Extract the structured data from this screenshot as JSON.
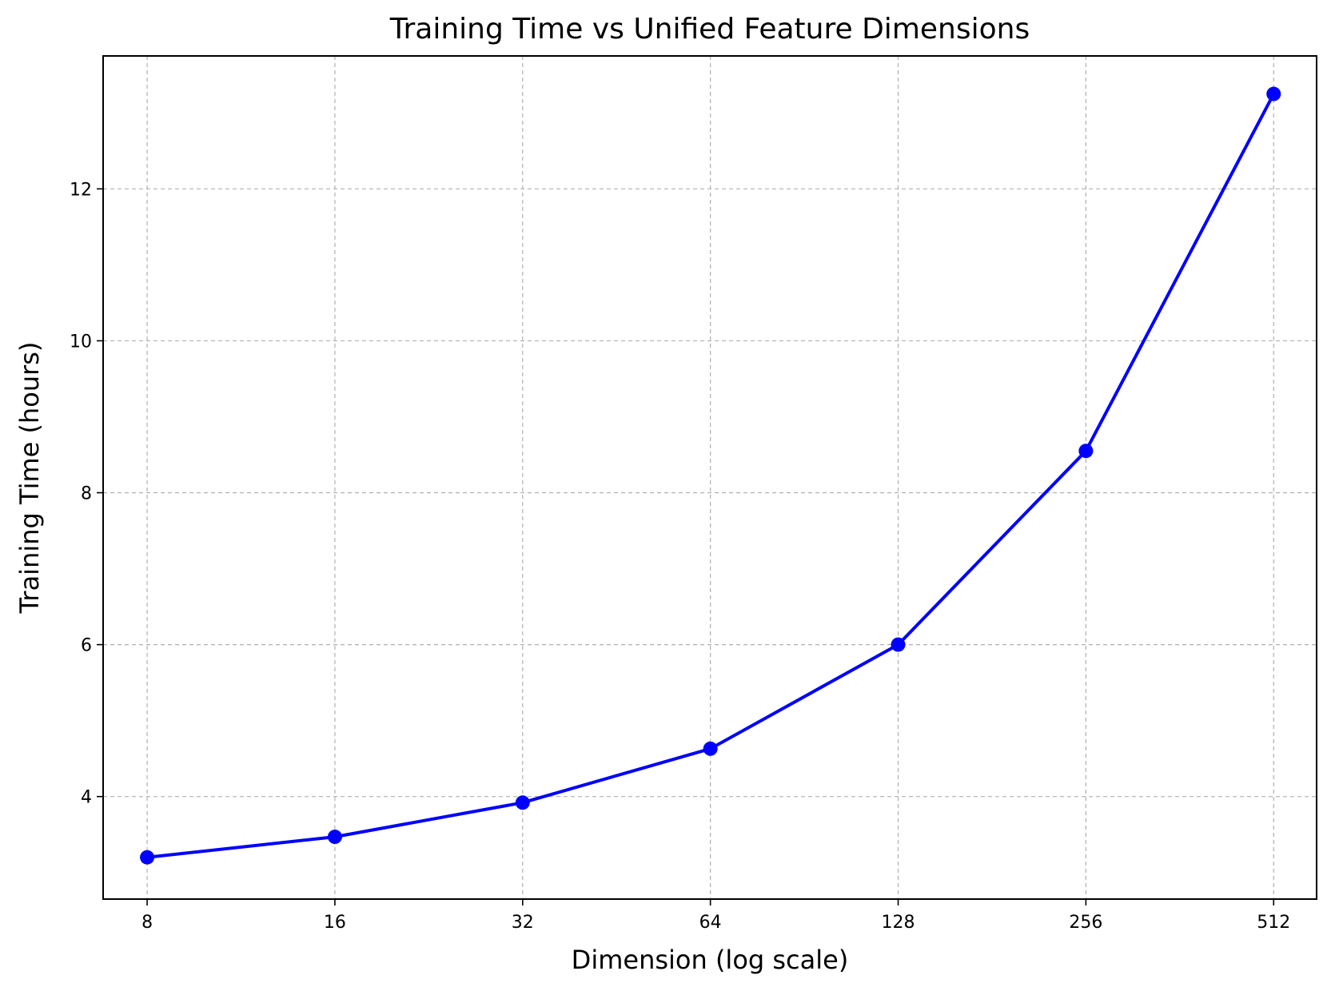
{
  "chart_data": {
    "type": "line",
    "title": "Training Time vs Unified Feature Dimensions",
    "xlabel": "Dimension (log scale)",
    "ylabel": "Training Time (hours)",
    "x_scale": "log2",
    "xlim": [
      6.8,
      600
    ],
    "ylim": [
      2.65,
      13.75
    ],
    "x_ticks": [
      8,
      16,
      32,
      64,
      128,
      256,
      512
    ],
    "x_tick_labels": [
      "8",
      "16",
      "32",
      "64",
      "128",
      "256",
      "512"
    ],
    "y_ticks": [
      4,
      6,
      8,
      10,
      12
    ],
    "y_tick_labels": [
      "4",
      "6",
      "8",
      "10",
      "12"
    ],
    "grid": true,
    "series": [
      {
        "color": "#0000ff",
        "marker": "circle",
        "x": [
          8,
          16,
          32,
          64,
          128,
          256,
          512
        ],
        "y": [
          3.2,
          3.47,
          3.92,
          4.63,
          6.0,
          8.55,
          13.25
        ]
      }
    ]
  }
}
